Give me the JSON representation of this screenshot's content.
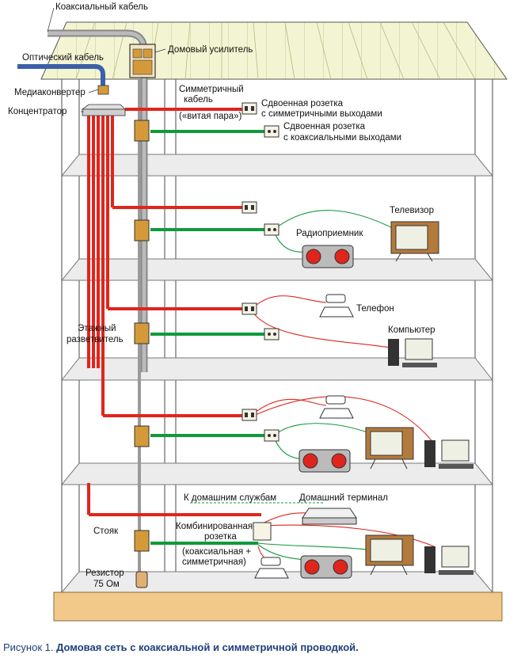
{
  "labels": {
    "coax_cable": "Коаксиальный кабель",
    "optic_cable": "Оптический кабель",
    "house_amp": "Домовый усилитель",
    "media_conv": "Медиаконвертер",
    "concentrator": "Концентратор",
    "sym_cable_1": "Симметричный",
    "sym_cable_2": "кабель",
    "sym_cable_3": "(«витая пара»)",
    "dual_sym_1": "Сдвоенная розетка",
    "dual_sym_2": "с симметричными выходами",
    "dual_coax_1": "Сдвоенная розетка",
    "dual_coax_2": "с коаксиальными выходами",
    "tv": "Телевизор",
    "radio": "Радиоприемник",
    "phone": "Телефон",
    "computer": "Компьютер",
    "floor_split_1": "Этажный",
    "floor_split_2": "разветвитель",
    "home_services": "К домашним службам",
    "home_terminal": "Домашний терминал",
    "combo_1": "Комбинированная",
    "combo_2": "розетка",
    "combo_3": "(коаксиальная +",
    "combo_4": "симметричная)",
    "riser": "Стояк",
    "resistor_1": "Резистор",
    "resistor_2": "75 Ом"
  },
  "caption": {
    "number": "Рисунок 1.",
    "text": "Домовая сеть с коаксиальной и симметричной проводкой."
  },
  "colors": {
    "red": "#e0251c",
    "green": "#109a3c",
    "gray": "#9a9a9a",
    "caption": "#1f3f7a",
    "roof": "#f3f5d2",
    "slab": "#ececec",
    "base": "#f2c98a"
  }
}
